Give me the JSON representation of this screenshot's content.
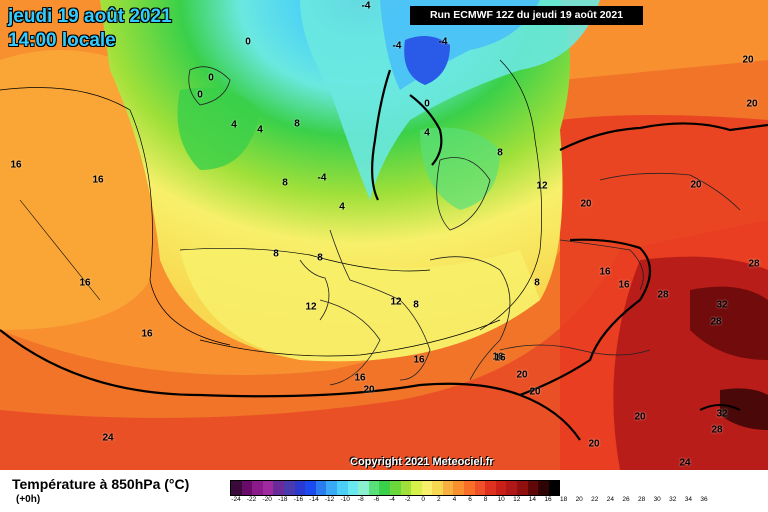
{
  "header": {
    "date_line": "jeudi 19 août 2021",
    "time_line": "14:00 locale",
    "run_label": "Run ECMWF 12Z du jeudi 19 août 2021"
  },
  "copyright": "Copyright 2021 Meteociel.fr",
  "legend": {
    "title": "Température à 850hPa (°C)",
    "subtitle": "(+0h)",
    "ticks": [
      "-24",
      "-22",
      "-20",
      "-18",
      "-16",
      "-14",
      "-12",
      "-10",
      "-8",
      "-6",
      "-4",
      "-2",
      "0",
      "2",
      "4",
      "6",
      "8",
      "10",
      "12",
      "14",
      "16",
      "18",
      "20",
      "22",
      "24",
      "26",
      "28",
      "30",
      "32",
      "34",
      "36"
    ],
    "colors": [
      "#3a0a3a",
      "#6a0a6a",
      "#8b1a8b",
      "#a02aa0",
      "#6a2a9a",
      "#4a3ab0",
      "#2a3ad0",
      "#1a4af0",
      "#2a7af0",
      "#3aaaf8",
      "#4ad0f8",
      "#6ae8f0",
      "#8af0d0",
      "#5ae07a",
      "#3ad04a",
      "#6ad83a",
      "#a0e03a",
      "#d8f04a",
      "#f8f06a",
      "#f8d850",
      "#f8b040",
      "#f89030",
      "#f87028",
      "#f05028",
      "#e03020",
      "#c82018",
      "#b01818",
      "#901010",
      "#600808",
      "#300404",
      "#000000"
    ]
  },
  "isotherm_labels": [
    {
      "text": "0"
    },
    {
      "text": "0"
    },
    {
      "text": "0"
    },
    {
      "text": "-4"
    },
    {
      "text": "-4"
    },
    {
      "text": "0"
    },
    {
      "text": "-4"
    },
    {
      "text": "4"
    },
    {
      "text": "4"
    },
    {
      "text": "8"
    },
    {
      "text": "8"
    },
    {
      "text": "-4"
    },
    {
      "text": "4"
    },
    {
      "text": "4"
    },
    {
      "text": "8"
    },
    {
      "text": "12"
    },
    {
      "text": "20"
    },
    {
      "text": "20"
    },
    {
      "text": "20"
    },
    {
      "text": "20"
    },
    {
      "text": "16"
    },
    {
      "text": "16"
    },
    {
      "text": "8"
    },
    {
      "text": "8"
    },
    {
      "text": "12"
    },
    {
      "text": "12"
    },
    {
      "text": "8"
    },
    {
      "text": "8"
    },
    {
      "text": "16"
    },
    {
      "text": "16"
    },
    {
      "text": "16"
    },
    {
      "text": "16"
    },
    {
      "text": "16"
    },
    {
      "text": "28"
    },
    {
      "text": "32"
    },
    {
      "text": "28"
    },
    {
      "text": "28"
    },
    {
      "text": "16"
    },
    {
      "text": "20"
    },
    {
      "text": "20"
    },
    {
      "text": "20"
    },
    {
      "text": "16"
    },
    {
      "text": "20"
    },
    {
      "text": "20"
    },
    {
      "text": "32"
    },
    {
      "text": "28"
    },
    {
      "text": "24"
    },
    {
      "text": "24"
    },
    {
      "text": "16"
    }
  ]
}
